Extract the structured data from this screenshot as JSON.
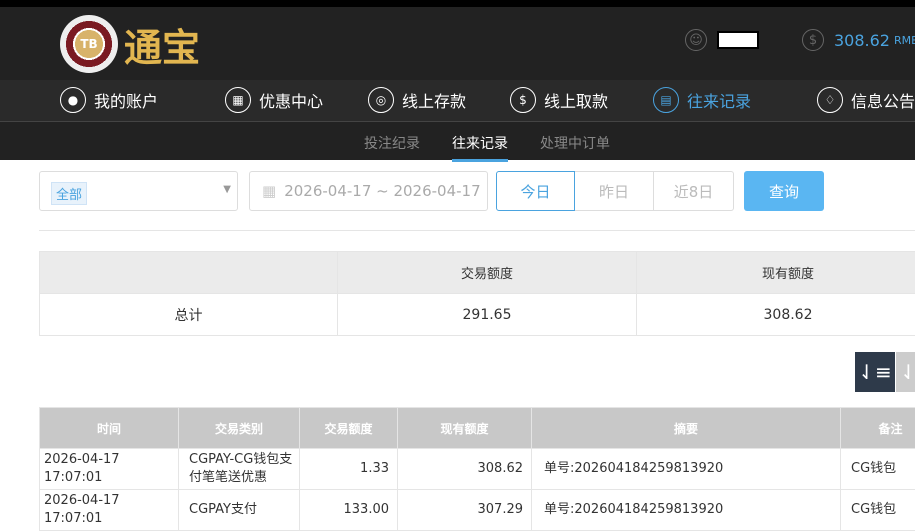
{
  "header": {
    "logo_badge": "TB",
    "logo_text": "通宝",
    "balance": "308.62",
    "currency": "RMB"
  },
  "nav": [
    {
      "label": "我的账户",
      "icon": "user-icon"
    },
    {
      "label": "优惠中心",
      "icon": "gift-icon"
    },
    {
      "label": "线上存款",
      "icon": "deposit-icon"
    },
    {
      "label": "线上取款",
      "icon": "withdraw-icon"
    },
    {
      "label": "往来记录",
      "icon": "record-icon",
      "active": true
    },
    {
      "label": "信息公告",
      "icon": "bell-icon"
    }
  ],
  "subnav": [
    {
      "label": "投注纪录"
    },
    {
      "label": "往来记录",
      "active": true
    },
    {
      "label": "处理中订单"
    }
  ],
  "filter": {
    "type_tag": "全部",
    "date_range": "2026-04-17 ~ 2026-04-17",
    "today": "今日",
    "yesterday": "昨日",
    "last8": "近8日",
    "search": "查询"
  },
  "summary": {
    "headers": [
      "",
      "交易额度",
      "现有额度"
    ],
    "row": [
      "总计",
      "291.65",
      "308.62"
    ]
  },
  "records": {
    "headers": [
      "时间",
      "交易类别",
      "交易额度",
      "现有额度",
      "摘要",
      "备注"
    ],
    "rows": [
      [
        "2026-04-17 17:07:01",
        "CGPAY-CG钱包支付笔笔送优惠",
        "1.33",
        "308.62",
        "单号:202604184259813920",
        "CG钱包"
      ],
      [
        "2026-04-17 17:07:01",
        "CGPAY支付",
        "133.00",
        "307.29",
        "单号:202604184259813920",
        "CG钱包"
      ]
    ]
  },
  "colors": {
    "accent": "#4aa3df",
    "search_button": "#5ab6f2",
    "header_bg": "#222222"
  }
}
